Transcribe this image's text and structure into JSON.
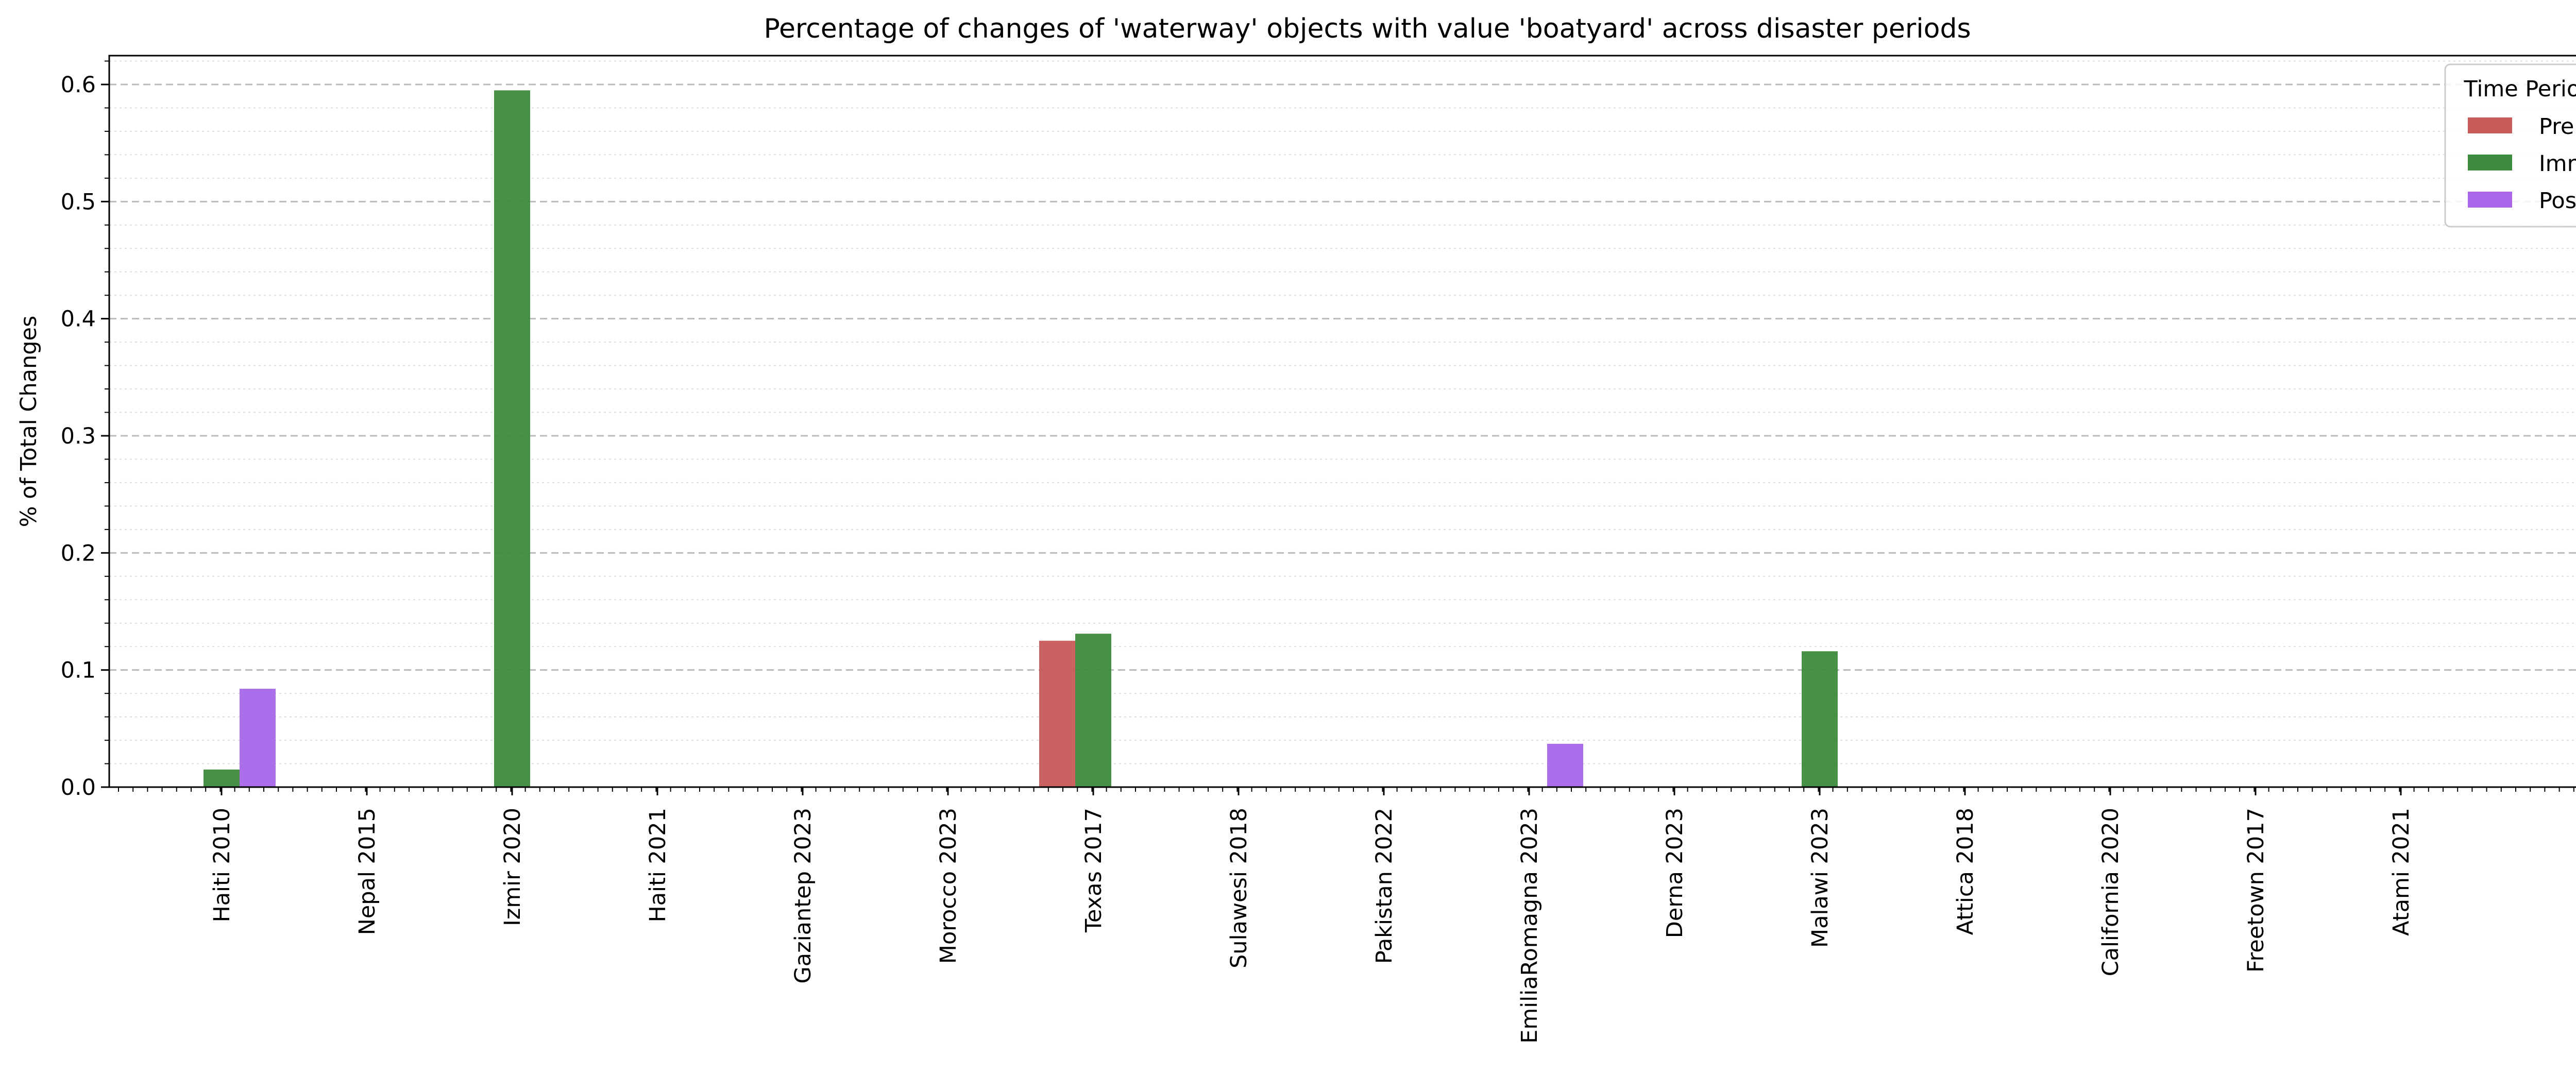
{
  "chart_data": {
    "type": "bar",
    "title": "Percentage of changes of 'waterway' objects with value 'boatyard' across disaster periods",
    "xlabel": "",
    "ylabel": "% of Total Changes",
    "ylim": [
      0,
      0.625
    ],
    "yticks": [
      "0.0",
      "0.1",
      "0.2",
      "0.3",
      "0.4",
      "0.5",
      "0.6"
    ],
    "grid": true,
    "legend_position": "top-right",
    "legend_title": "Time Period",
    "categories": [
      "Haiti 2010",
      "Nepal 2015",
      "Izmir 2020",
      "Haiti 2021",
      "Gaziantep 2023",
      "Morocco 2023",
      "Texas 2017",
      "Sulawesi 2018",
      "Pakistan 2022",
      "EmiliaRomagna 2023",
      "Derna 2023",
      "Malawi 2023",
      "Attica 2018",
      "California 2020",
      "Freetown 2017",
      "Atami 2021"
    ],
    "series": [
      {
        "name": "Pre",
        "color": "#c85a5a",
        "values": [
          0,
          0,
          0,
          0,
          0,
          0,
          0.125,
          0,
          0,
          0,
          0,
          0,
          0,
          0,
          0,
          0
        ]
      },
      {
        "name": "Imm",
        "color": "#3d8b3d",
        "values": [
          0.015,
          0,
          0.595,
          0,
          0,
          0,
          0.131,
          0,
          0,
          0,
          0,
          0.116,
          0,
          0,
          0,
          0
        ]
      },
      {
        "name": "Post",
        "color": "#a966ea",
        "values": [
          0.084,
          0,
          0,
          0,
          0,
          0,
          0,
          0,
          0,
          0.037,
          0,
          0,
          0,
          0,
          0,
          0
        ]
      }
    ]
  }
}
